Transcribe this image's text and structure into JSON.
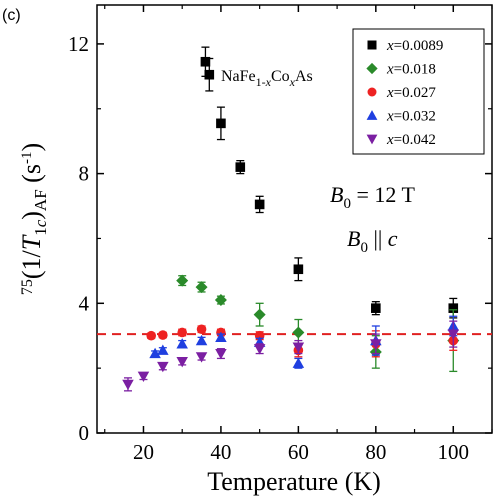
{
  "panel_label": "(c)",
  "chart_data": {
    "type": "scatter",
    "xlabel": "Temperature (K)",
    "ylabel": "75(1/T1c)AF (s-1)",
    "xlim": [
      8,
      110
    ],
    "ylim": [
      0,
      13.2
    ],
    "xticks": [
      20,
      40,
      60,
      80,
      100
    ],
    "yticks": [
      0,
      4,
      8,
      12
    ],
    "grid": false,
    "legend_position": "top-right",
    "reference_line": {
      "y": 3.05,
      "style": "dashed",
      "color": "#e02020"
    },
    "annotations": {
      "compound": "NaFe1-xCoxAs",
      "field_strength": "B0 = 12 T",
      "field_direction": "B0 || c"
    },
    "series": [
      {
        "name": "x=0.0089",
        "marker": "square",
        "color": "#000000",
        "points": [
          {
            "x": 36,
            "y": 11.45,
            "err": 0.45
          },
          {
            "x": 37,
            "y": 11.05,
            "err": 0.5
          },
          {
            "x": 40,
            "y": 9.55,
            "err": 0.5
          },
          {
            "x": 45,
            "y": 8.2,
            "err": 0.2
          },
          {
            "x": 50,
            "y": 7.05,
            "err": 0.25
          },
          {
            "x": 60,
            "y": 5.05,
            "err": 0.35
          },
          {
            "x": 80,
            "y": 3.85,
            "err": 0.2
          },
          {
            "x": 100,
            "y": 3.85,
            "err": 0.3
          }
        ]
      },
      {
        "name": "x=0.018",
        "marker": "diamond",
        "color": "#2a8a2a",
        "points": [
          {
            "x": 30,
            "y": 4.7,
            "err": 0.15
          },
          {
            "x": 35,
            "y": 4.5,
            "err": 0.15
          },
          {
            "x": 40,
            "y": 4.1,
            "err": 0.12
          },
          {
            "x": 50,
            "y": 3.65,
            "err": 0.35
          },
          {
            "x": 60,
            "y": 3.1,
            "err": 0.4
          },
          {
            "x": 80,
            "y": 2.5,
            "err": 0.5
          },
          {
            "x": 100,
            "y": 2.85,
            "err": 0.95
          }
        ]
      },
      {
        "name": "x=0.027",
        "marker": "circle",
        "color": "#ee2222",
        "points": [
          {
            "x": 22,
            "y": 3.0,
            "err": 0.08
          },
          {
            "x": 25,
            "y": 3.02,
            "err": 0.08
          },
          {
            "x": 30,
            "y": 3.1,
            "err": 0.1
          },
          {
            "x": 35,
            "y": 3.2,
            "err": 0.1
          },
          {
            "x": 40,
            "y": 3.1,
            "err": 0.1
          },
          {
            "x": 50,
            "y": 3.0,
            "err": 0.12
          },
          {
            "x": 60,
            "y": 2.55,
            "err": 0.2
          },
          {
            "x": 80,
            "y": 2.75,
            "err": 0.4
          },
          {
            "x": 100,
            "y": 2.85,
            "err": 0.3
          }
        ]
      },
      {
        "name": "x=0.032",
        "marker": "triangle-up",
        "color": "#1f3fe0",
        "points": [
          {
            "x": 23,
            "y": 2.45,
            "err": 0.08
          },
          {
            "x": 25,
            "y": 2.55,
            "err": 0.08
          },
          {
            "x": 30,
            "y": 2.75,
            "err": 0.1
          },
          {
            "x": 35,
            "y": 2.85,
            "err": 0.1
          },
          {
            "x": 40,
            "y": 2.95,
            "err": 0.1
          },
          {
            "x": 50,
            "y": 2.8,
            "err": 0.12
          },
          {
            "x": 60,
            "y": 2.15,
            "err": 0.15
          },
          {
            "x": 80,
            "y": 2.85,
            "err": 0.45
          },
          {
            "x": 100,
            "y": 3.3,
            "err": 0.3
          }
        ]
      },
      {
        "name": "x=0.042",
        "marker": "triangle-down",
        "color": "#7b1fa2",
        "points": [
          {
            "x": 16,
            "y": 1.5,
            "err": 0.2
          },
          {
            "x": 20,
            "y": 1.75,
            "err": 0.1
          },
          {
            "x": 25,
            "y": 2.05,
            "err": 0.1
          },
          {
            "x": 30,
            "y": 2.2,
            "err": 0.1
          },
          {
            "x": 35,
            "y": 2.35,
            "err": 0.1
          },
          {
            "x": 40,
            "y": 2.45,
            "err": 0.15
          },
          {
            "x": 50,
            "y": 2.6,
            "err": 0.15
          },
          {
            "x": 60,
            "y": 2.65,
            "err": 0.2
          },
          {
            "x": 80,
            "y": 2.75,
            "err": 0.3
          },
          {
            "x": 100,
            "y": 3.05,
            "err": 0.4
          }
        ]
      }
    ]
  }
}
